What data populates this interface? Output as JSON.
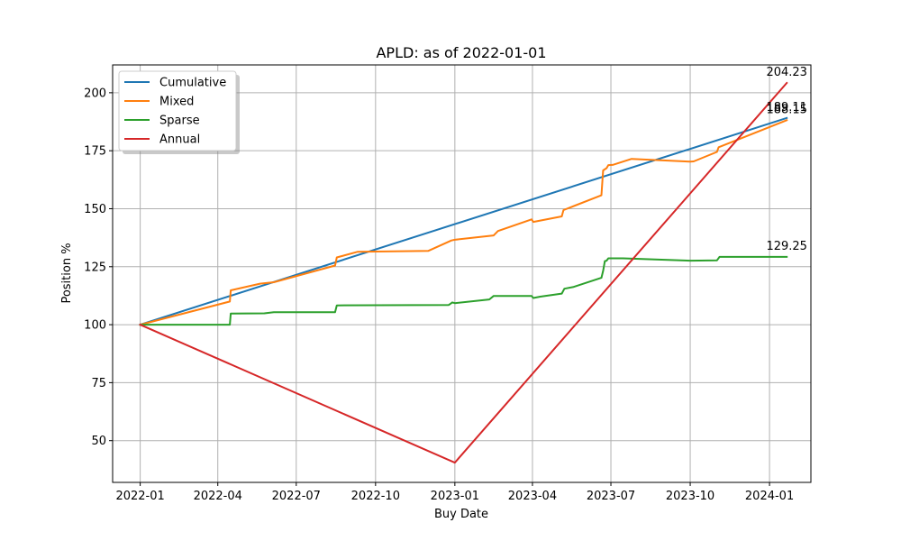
{
  "chart_data": {
    "type": "line",
    "title": "APLD: as of 2022-01-01",
    "xlabel": "Buy Date",
    "ylabel": "Position %",
    "x_axis": {
      "type": "date",
      "range": [
        "2021-11-30",
        "2024-02-18"
      ],
      "ticks": [
        "2022-01-01",
        "2022-04-01",
        "2022-07-01",
        "2022-10-01",
        "2023-01-01",
        "2023-04-01",
        "2023-07-01",
        "2023-10-01",
        "2024-01-01"
      ],
      "tick_labels": [
        "2022-01",
        "2022-04",
        "2022-07",
        "2022-10",
        "2023-01",
        "2023-04",
        "2023-07",
        "2023-10",
        "2024-01"
      ]
    },
    "y_axis": {
      "range": [
        32,
        212
      ],
      "ticks": [
        50,
        75,
        100,
        125,
        150,
        175,
        200
      ],
      "tick_labels": [
        "50",
        "75",
        "100",
        "125",
        "150",
        "175",
        "200"
      ]
    },
    "grid": true,
    "legend_position": "top-left",
    "series": [
      {
        "name": "Cumulative",
        "color": "#1f77b4",
        "end_label": "189.11",
        "points": [
          [
            "2022-01-01",
            100.0
          ],
          [
            "2024-01-21",
            189.11
          ]
        ]
      },
      {
        "name": "Mixed",
        "color": "#ff7f0e",
        "end_label": "188.15",
        "points": [
          [
            "2022-01-01",
            100.0
          ],
          [
            "2022-04-15",
            110.0
          ],
          [
            "2022-04-16",
            114.8
          ],
          [
            "2022-05-20",
            117.7
          ],
          [
            "2022-06-05",
            118.3
          ],
          [
            "2022-08-15",
            125.5
          ],
          [
            "2022-08-17",
            129.0
          ],
          [
            "2022-09-10",
            131.4
          ],
          [
            "2022-12-01",
            131.8
          ],
          [
            "2022-12-28",
            136.3
          ],
          [
            "2023-01-01",
            136.6
          ],
          [
            "2023-02-15",
            138.5
          ],
          [
            "2023-02-20",
            140.4
          ],
          [
            "2023-03-31",
            145.4
          ],
          [
            "2023-04-02",
            144.3
          ],
          [
            "2023-05-05",
            146.7
          ],
          [
            "2023-05-07",
            149.4
          ],
          [
            "2023-06-20",
            155.8
          ],
          [
            "2023-06-22",
            166.5
          ],
          [
            "2023-06-26",
            167.5
          ],
          [
            "2023-06-28",
            168.8
          ],
          [
            "2023-07-03",
            168.9
          ],
          [
            "2023-07-25",
            171.5
          ],
          [
            "2023-10-01",
            170.3
          ],
          [
            "2023-10-05",
            170.4
          ],
          [
            "2023-11-01",
            174.5
          ],
          [
            "2023-11-03",
            176.5
          ],
          [
            "2024-01-21",
            188.15
          ]
        ]
      },
      {
        "name": "Sparse",
        "color": "#2ca02c",
        "end_label": "129.25",
        "points": [
          [
            "2022-01-01",
            100.0
          ],
          [
            "2022-04-15",
            100.0
          ],
          [
            "2022-04-16",
            104.8
          ],
          [
            "2022-05-25",
            104.9
          ],
          [
            "2022-06-05",
            105.4
          ],
          [
            "2022-08-15",
            105.4
          ],
          [
            "2022-08-17",
            108.3
          ],
          [
            "2022-12-25",
            108.5
          ],
          [
            "2022-12-29",
            109.6
          ],
          [
            "2023-01-01",
            109.3
          ],
          [
            "2023-02-10",
            110.9
          ],
          [
            "2023-02-15",
            112.4
          ],
          [
            "2023-03-31",
            112.4
          ],
          [
            "2023-04-02",
            111.5
          ],
          [
            "2023-04-10",
            112.1
          ],
          [
            "2023-05-05",
            113.4
          ],
          [
            "2023-05-08",
            115.5
          ],
          [
            "2023-05-18",
            116.2
          ],
          [
            "2023-06-20",
            120.2
          ],
          [
            "2023-06-22",
            123.2
          ],
          [
            "2023-06-24",
            127.4
          ],
          [
            "2023-06-26",
            127.6
          ],
          [
            "2023-06-28",
            128.6
          ],
          [
            "2023-07-15",
            128.6
          ],
          [
            "2023-10-01",
            127.6
          ],
          [
            "2023-11-01",
            127.7
          ],
          [
            "2023-11-04",
            129.25
          ],
          [
            "2024-01-21",
            129.25
          ]
        ]
      },
      {
        "name": "Annual",
        "color": "#d62728",
        "end_label": "204.23",
        "points": [
          [
            "2022-01-01",
            100.0
          ],
          [
            "2023-01-01",
            40.5
          ],
          [
            "2024-01-21",
            204.23
          ]
        ]
      }
    ]
  }
}
